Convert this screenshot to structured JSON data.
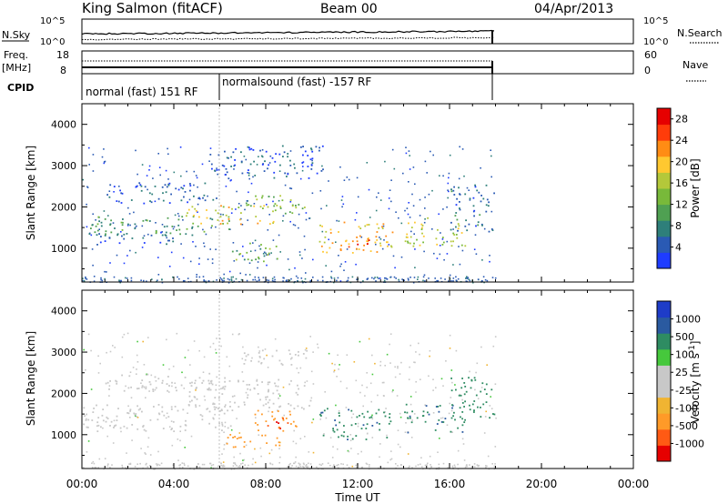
{
  "header": {
    "station": "King Salmon (fitACF)",
    "beam": "Beam 00",
    "date": "04/Apr/2013"
  },
  "noise_panel": {
    "left_label": "N.Sky",
    "right_label": "N.Search",
    "ticks": [
      "10^5",
      "10^0"
    ]
  },
  "freq_panel": {
    "left_label_line1": "Freq.",
    "left_label_line2": "[MHz]",
    "left_ticks": [
      "18",
      "8"
    ],
    "right_label": "Nave",
    "right_ticks": [
      "60",
      "0"
    ]
  },
  "cpid": {
    "label": "CPID",
    "segments": [
      {
        "text": "normal (fast) 151 RF",
        "start_hour": 0.0,
        "end_hour": 6.05
      },
      {
        "text": "normalsound (fast) -157 RF",
        "start_hour": 6.05,
        "end_hour": 18.0
      }
    ]
  },
  "colors": {
    "power_scale": [
      "#1e3cff",
      "#2a5ab4",
      "#2e7f7a",
      "#4fa052",
      "#78b93a",
      "#b4c83a",
      "#ffc830",
      "#ff8c14",
      "#ff3c0a",
      "#e60000"
    ],
    "velocity_scale": [
      "#e60000",
      "#ff5a14",
      "#ff9a28",
      "#f0b432",
      "#c8c8c8",
      "#c8c8c8",
      "#46c83c",
      "#2e8c62",
      "#2a5aa0",
      "#1e3cc8"
    ]
  },
  "chart_data": [
    {
      "type": "heatmap",
      "title": "",
      "xlabel": "Time UT",
      "ylabel": "Slant Range [km]",
      "colorbar_label": "Power [dB]",
      "colorbar_ticks": [
        "28",
        "24",
        "20",
        "16",
        "12",
        "8",
        "4"
      ],
      "xlim": [
        0,
        24
      ],
      "ylim": [
        180,
        4500
      ],
      "x_ticks": [
        "00:00",
        "04:00",
        "08:00",
        "12:00",
        "16:00",
        "20:00",
        "00:00"
      ],
      "y_ticks": [
        "1000",
        "2000",
        "3000",
        "4000"
      ],
      "data_end_hour": 18.0,
      "features": [
        {
          "t0": 0.1,
          "t1": 6.5,
          "r0": 1320,
          "r1": 1790,
          "power": 10
        },
        {
          "t0": 0.1,
          "t1": 4.0,
          "r0": 1100,
          "r1": 1400,
          "power": 6
        },
        {
          "t0": 4.5,
          "t1": 8.5,
          "r0": 1600,
          "r1": 2050,
          "power": 18
        },
        {
          "t0": 6.8,
          "t1": 9.8,
          "r0": 1850,
          "r1": 2300,
          "power": 14
        },
        {
          "t0": 6.2,
          "t1": 8.5,
          "r0": 700,
          "r1": 1150,
          "power": 12
        },
        {
          "t0": 1.0,
          "t1": 6.0,
          "r0": 2100,
          "r1": 2600,
          "power": 5
        },
        {
          "t0": 5.5,
          "t1": 10.5,
          "r0": 2700,
          "r1": 3500,
          "power": 4
        },
        {
          "t0": 10.2,
          "t1": 13.5,
          "r0": 900,
          "r1": 1650,
          "power": 20
        },
        {
          "t0": 11.5,
          "t1": 12.5,
          "r0": 1000,
          "r1": 1400,
          "power": 26
        },
        {
          "t0": 14.0,
          "t1": 16.7,
          "r0": 1050,
          "r1": 1750,
          "power": 16
        },
        {
          "t0": 16.0,
          "t1": 18.0,
          "r0": 1400,
          "r1": 2600,
          "power": 6
        }
      ]
    },
    {
      "type": "heatmap",
      "title": "",
      "xlabel": "Time UT",
      "ylabel": "Slant Range [km]",
      "colorbar_label": "Velocity [m s^-1]",
      "colorbar_ticks": [
        "1000",
        "500",
        "100",
        "25",
        "-25",
        "-100",
        "-500",
        "-1000"
      ],
      "xlim": [
        0,
        24
      ],
      "ylim": [
        180,
        4500
      ],
      "x_ticks": [
        "00:00",
        "04:00",
        "08:00",
        "12:00",
        "16:00",
        "20:00",
        "00:00"
      ],
      "y_ticks": [
        "1000",
        "2000",
        "3000",
        "4000"
      ],
      "data_end_hour": 18.0,
      "features": [
        {
          "t0": 0.0,
          "t1": 6.5,
          "r0": 1100,
          "r1": 1750,
          "velocity": 0
        },
        {
          "t0": 4.5,
          "t1": 10.0,
          "r0": 1600,
          "r1": 2350,
          "velocity": 0
        },
        {
          "t0": 1.0,
          "t1": 6.5,
          "r0": 2050,
          "r1": 2500,
          "velocity": 0
        },
        {
          "t0": 6.8,
          "t1": 9.8,
          "r0": 2700,
          "r1": 3100,
          "velocity": 0
        },
        {
          "t0": 7.5,
          "t1": 9.5,
          "r0": 1050,
          "r1": 1600,
          "velocity": -300
        },
        {
          "t0": 8.0,
          "t1": 9.0,
          "r0": 1150,
          "r1": 1450,
          "velocity": -900
        },
        {
          "t0": 6.2,
          "t1": 8.8,
          "r0": 700,
          "r1": 1050,
          "velocity": -150
        },
        {
          "t0": 10.2,
          "t1": 13.5,
          "r0": 900,
          "r1": 1650,
          "velocity": 350
        },
        {
          "t0": 14.0,
          "t1": 16.7,
          "r0": 1050,
          "r1": 1750,
          "velocity": 400
        },
        {
          "t0": 16.0,
          "t1": 18.0,
          "r0": 1400,
          "r1": 2400,
          "velocity": 150
        }
      ]
    }
  ]
}
